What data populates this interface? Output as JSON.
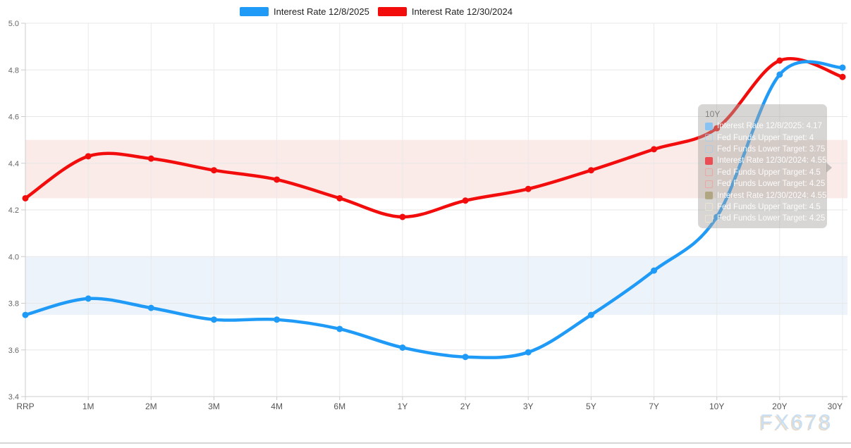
{
  "watermark": "FX678",
  "legend": {
    "items": [
      {
        "label": "Interest Rate 12/8/2025",
        "color": "#1f9bf7"
      },
      {
        "label": "Interest Rate 12/30/2024",
        "color": "#f20c0c"
      }
    ]
  },
  "chart_data": {
    "type": "line",
    "title": "",
    "xlabel": "",
    "ylabel": "",
    "categories": [
      "RRP",
      "1M",
      "2M",
      "3M",
      "4M",
      "6M",
      "1Y",
      "2Y",
      "3Y",
      "5Y",
      "7Y",
      "10Y",
      "20Y",
      "30Y"
    ],
    "series": [
      {
        "name": "Interest Rate 12/8/2025",
        "color": "#1f9bf7",
        "values": [
          3.75,
          3.82,
          3.78,
          3.73,
          3.73,
          3.69,
          3.61,
          3.57,
          3.59,
          3.75,
          3.94,
          4.17,
          4.78,
          4.81
        ]
      },
      {
        "name": "Interest Rate 12/30/2024",
        "color": "#f20c0c",
        "values": [
          4.25,
          4.43,
          4.42,
          4.37,
          4.33,
          4.25,
          4.17,
          4.24,
          4.29,
          4.37,
          4.46,
          4.55,
          4.84,
          4.77
        ]
      }
    ],
    "bands": [
      {
        "name": "fed-funds-target-12/30/2024",
        "from": 4.25,
        "to": 4.5,
        "color": "#faebe8"
      },
      {
        "name": "fed-funds-target-12/8/2025",
        "from": 3.75,
        "to": 4.0,
        "color": "#edf3fb"
      }
    ],
    "ylim": [
      3.4,
      5.0
    ],
    "yticks": [
      5.0,
      4.8,
      4.6,
      4.4,
      4.2,
      4.0,
      3.8,
      3.6,
      3.4
    ],
    "grid": true,
    "legend_position": "top-center"
  },
  "tooltip": {
    "title": "10Y",
    "rows": [
      {
        "swatch": "blue-filled",
        "label": "Interest Rate 12/8/2025",
        "value": "4.17"
      },
      {
        "swatch": "blue-outline",
        "label": "Fed Funds Upper Target",
        "value": "4"
      },
      {
        "swatch": "blue-outline",
        "label": "Fed Funds Lower Target",
        "value": "3.75"
      },
      {
        "swatch": "red-filled",
        "label": "Interest Rate 12/30/2024",
        "value": "4.55"
      },
      {
        "swatch": "red-outline",
        "label": "Fed Funds Upper Target",
        "value": "4.5"
      },
      {
        "swatch": "red-outline",
        "label": "Fed Funds Lower Target",
        "value": "4.25"
      },
      {
        "swatch": "olive-filled",
        "label": "Interest Rate 12/30/2024",
        "value": "4.55"
      },
      {
        "swatch": "pale-outline",
        "label": "Fed Funds Upper Target",
        "value": "4.5"
      },
      {
        "swatch": "pale-outline",
        "label": "Fed Funds Lower Target",
        "value": "4.25"
      }
    ]
  }
}
